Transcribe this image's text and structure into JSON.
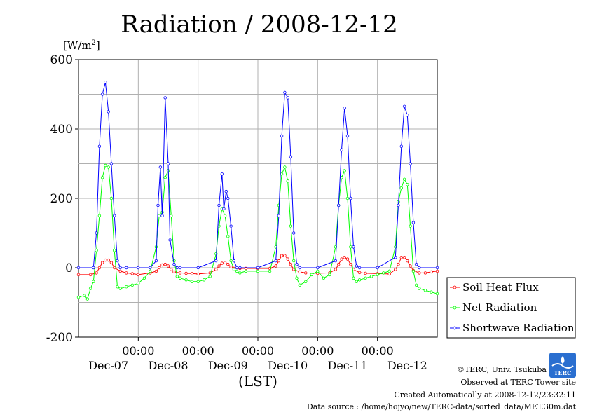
{
  "chart_data": {
    "type": "line",
    "title": "Radiation / 2008-12-12",
    "ylabel": "[W/m",
    "ylabel_sup": "2",
    "ylabel_close": "]",
    "xlabel": "(LST)",
    "ylim": [
      -200,
      600
    ],
    "yticks": [
      -200,
      0,
      200,
      400,
      600
    ],
    "xlim": [
      0,
      6
    ],
    "xtick_positions": [
      1,
      2,
      3,
      4,
      5
    ],
    "xtick_time_labels": [
      "00:00",
      "00:00",
      "00:00",
      "00:00",
      "00:00"
    ],
    "day_labels": [
      "Dec-07",
      "Dec-08",
      "Dec-09",
      "Dec-10",
      "Dec-11",
      "Dec-12"
    ],
    "grid": true,
    "legend_position": "right",
    "series": [
      {
        "name": "Soil Heat Flux",
        "color": "#ff0000",
        "x": [
          0,
          0.2,
          0.3,
          0.35,
          0.4,
          0.45,
          0.5,
          0.55,
          0.6,
          0.7,
          0.8,
          0.9,
          1.0,
          1.2,
          1.3,
          1.35,
          1.4,
          1.45,
          1.5,
          1.55,
          1.6,
          1.7,
          1.8,
          1.9,
          2.0,
          2.2,
          2.3,
          2.35,
          2.4,
          2.45,
          2.5,
          2.55,
          2.6,
          2.7,
          2.8,
          3.0,
          3.2,
          3.3,
          3.35,
          3.4,
          3.45,
          3.5,
          3.55,
          3.6,
          3.7,
          3.8,
          4.0,
          4.2,
          4.3,
          4.35,
          4.4,
          4.45,
          4.5,
          4.55,
          4.6,
          4.7,
          4.8,
          5.0,
          5.2,
          5.3,
          5.35,
          5.4,
          5.45,
          5.5,
          5.55,
          5.6,
          5.7,
          5.8,
          5.9,
          6.0
        ],
        "y": [
          -20,
          -20,
          -15,
          0,
          15,
          22,
          22,
          15,
          0,
          -10,
          -15,
          -17,
          -20,
          -15,
          -10,
          0,
          8,
          10,
          5,
          -5,
          -12,
          -15,
          -16,
          -17,
          -18,
          -15,
          -5,
          5,
          13,
          15,
          10,
          2,
          -2,
          -2,
          -2,
          -2,
          -2,
          5,
          20,
          35,
          35,
          25,
          10,
          -5,
          -12,
          -15,
          -16,
          -15,
          -5,
          10,
          25,
          30,
          25,
          10,
          -5,
          -14,
          -16,
          -17,
          -18,
          -5,
          10,
          30,
          30,
          20,
          5,
          -8,
          -15,
          -15,
          -12,
          -10
        ]
      },
      {
        "name": "Net Radiation",
        "color": "#00ff00",
        "x": [
          0,
          0.1,
          0.15,
          0.2,
          0.25,
          0.3,
          0.35,
          0.4,
          0.45,
          0.5,
          0.55,
          0.6,
          0.65,
          0.7,
          0.8,
          0.9,
          1.0,
          1.1,
          1.2,
          1.3,
          1.35,
          1.4,
          1.45,
          1.5,
          1.55,
          1.6,
          1.65,
          1.7,
          1.8,
          1.9,
          2.0,
          2.1,
          2.2,
          2.3,
          2.35,
          2.4,
          2.45,
          2.5,
          2.55,
          2.6,
          2.65,
          2.7,
          2.8,
          3.0,
          3.2,
          3.3,
          3.35,
          3.4,
          3.45,
          3.5,
          3.55,
          3.6,
          3.65,
          3.7,
          3.8,
          3.9,
          4.0,
          4.1,
          4.2,
          4.3,
          4.35,
          4.4,
          4.45,
          4.5,
          4.55,
          4.6,
          4.65,
          4.7,
          4.8,
          4.9,
          5.0,
          5.1,
          5.2,
          5.3,
          5.35,
          5.4,
          5.45,
          5.5,
          5.55,
          5.6,
          5.65,
          5.7,
          5.8,
          5.9,
          6.0
        ],
        "y": [
          -85,
          -80,
          -90,
          -60,
          -40,
          50,
          150,
          260,
          295,
          290,
          200,
          50,
          -55,
          -60,
          -55,
          -50,
          -45,
          -30,
          -10,
          60,
          150,
          160,
          260,
          280,
          150,
          20,
          -25,
          -30,
          -35,
          -40,
          -40,
          -35,
          -25,
          40,
          120,
          170,
          150,
          90,
          20,
          -5,
          -10,
          -15,
          -10,
          -10,
          -10,
          60,
          180,
          270,
          290,
          250,
          120,
          20,
          -30,
          -50,
          -40,
          -20,
          -10,
          -30,
          -20,
          60,
          180,
          260,
          280,
          200,
          60,
          -30,
          -40,
          -35,
          -30,
          -25,
          -20,
          -15,
          -10,
          60,
          190,
          230,
          255,
          240,
          120,
          -10,
          -50,
          -60,
          -65,
          -70,
          -75
        ]
      },
      {
        "name": "Shortwave Radiation",
        "color": "#0000ff",
        "x": [
          0,
          0.25,
          0.3,
          0.35,
          0.4,
          0.45,
          0.5,
          0.55,
          0.6,
          0.65,
          0.7,
          0.8,
          1.0,
          1.2,
          1.3,
          1.33,
          1.37,
          1.4,
          1.45,
          1.5,
          1.53,
          1.6,
          1.65,
          1.7,
          2.0,
          2.3,
          2.35,
          2.4,
          2.43,
          2.47,
          2.5,
          2.55,
          2.6,
          2.65,
          2.7,
          3.0,
          3.3,
          3.35,
          3.4,
          3.45,
          3.5,
          3.55,
          3.6,
          3.65,
          3.7,
          4.0,
          4.3,
          4.35,
          4.4,
          4.45,
          4.5,
          4.55,
          4.6,
          4.65,
          4.7,
          5.0,
          5.3,
          5.35,
          5.4,
          5.45,
          5.5,
          5.55,
          5.6,
          5.65,
          5.7,
          6.0
        ],
        "y": [
          0,
          0,
          100,
          350,
          500,
          535,
          450,
          300,
          150,
          20,
          0,
          0,
          0,
          0,
          20,
          180,
          290,
          150,
          490,
          300,
          80,
          10,
          0,
          0,
          0,
          20,
          180,
          270,
          170,
          220,
          200,
          120,
          20,
          0,
          0,
          0,
          20,
          150,
          380,
          505,
          490,
          320,
          100,
          10,
          0,
          0,
          20,
          180,
          340,
          460,
          380,
          200,
          60,
          5,
          0,
          0,
          30,
          180,
          350,
          465,
          440,
          300,
          130,
          10,
          0,
          0
        ]
      }
    ]
  },
  "footer": {
    "copyright": "©TERC, Univ. Tsukuba",
    "observed": "Observed at TERC Tower site",
    "created": "Created Automatically at 2008-12-12/23:32:11",
    "source": "Data source : /home/hojyo/new/TERC-data/sorted_data/MET.30m.dat",
    "logo_text": "TERC"
  }
}
